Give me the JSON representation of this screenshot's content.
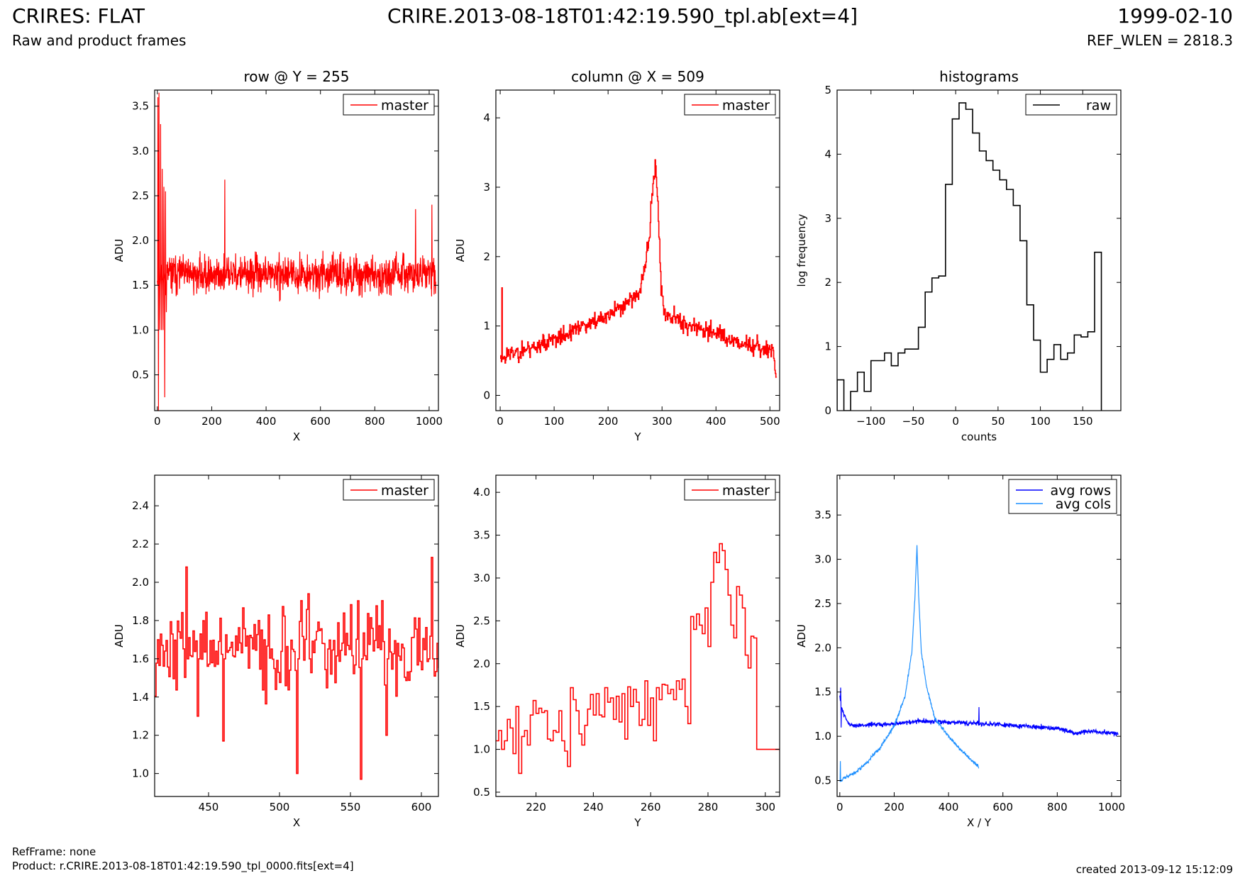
{
  "header": {
    "title": "CRIRES: FLAT",
    "subtitle": "Raw and product frames",
    "file": "CRIRE.2013-08-18T01:42:19.590_tpl.ab[ext=4]",
    "date": "1999-02-10",
    "ref_wlen": "REF_WLEN = 2818.3"
  },
  "footer": {
    "refframe": "RefFrame: none",
    "product": "Product: r.CRIRE.2013-08-18T01:42:19.590_tpl_0000.fits[ext=4]",
    "created": "created 2013-09-12 15:12:09"
  },
  "colors": {
    "master": "#ff0000",
    "raw": "#000000",
    "avg_rows": "#0000ff",
    "avg_cols": "#1e90ff"
  },
  "chart_data": [
    {
      "id": "row",
      "type": "line",
      "title": "row @ Y = 255",
      "xlabel": "X",
      "ylabel": "ADU",
      "xlim": [
        -10,
        1034
      ],
      "ylim": [
        0.1,
        3.68
      ],
      "xticks": [
        0,
        200,
        400,
        600,
        800,
        1000
      ],
      "yticks": [
        0.5,
        1.0,
        1.5,
        2.0,
        2.5,
        3.0,
        3.5
      ],
      "ytick_format": 1,
      "legend": "top-right",
      "series": [
        {
          "name": "master",
          "color": "#ff0000",
          "step": false,
          "noise": {
            "x0": 0,
            "x1": 1024,
            "n": 1024,
            "base": 1.62,
            "amp": 0.2,
            "seed": 11
          },
          "points": [
            [
              2,
              3.6
            ],
            [
              4,
              0.1
            ],
            [
              6,
              3.65
            ],
            [
              9,
              1.0
            ],
            [
              12,
              3.3
            ],
            [
              15,
              1.0
            ],
            [
              18,
              2.8
            ],
            [
              21,
              1.0
            ],
            [
              24,
              2.6
            ],
            [
              27,
              0.25
            ],
            [
              30,
              2.55
            ],
            [
              33,
              1.2
            ],
            [
              248,
              2.68
            ],
            [
              250,
              1.6
            ],
            [
              950,
              2.35
            ],
            [
              952,
              1.6
            ],
            [
              1010,
              2.4
            ],
            [
              1012,
              1.6
            ]
          ]
        }
      ]
    },
    {
      "id": "column",
      "type": "line",
      "title": "column @ X = 509",
      "xlabel": "Y",
      "ylabel": "ADU",
      "xlim": [
        -8,
        518
      ],
      "ylim": [
        -0.22,
        4.4
      ],
      "xticks": [
        0,
        100,
        200,
        300,
        400,
        500
      ],
      "yticks": [
        0,
        1,
        2,
        3,
        4
      ],
      "ytick_format": 0,
      "legend": "top-right",
      "series": [
        {
          "name": "master",
          "color": "#ff0000",
          "step": true,
          "noise": {
            "x0": 0,
            "x1": 512,
            "n": 512,
            "amp": 0.13,
            "seed": 23,
            "profile": [
              [
                0,
                0.55
              ],
              [
                100,
                0.8
              ],
              [
                200,
                1.15
              ],
              [
                260,
                1.5
              ],
              [
                275,
                2.2
              ],
              [
                283,
                3.0
              ],
              [
                287,
                3.4
              ],
              [
                292,
                2.8
              ],
              [
                298,
                1.5
              ],
              [
                303,
                1.2
              ],
              [
                350,
                1.0
              ],
              [
                400,
                0.9
              ],
              [
                450,
                0.75
              ],
              [
                505,
                0.65
              ],
              [
                512,
                0.25
              ]
            ]
          },
          "points": [
            [
              3,
              1.55
            ],
            [
              5,
              0.55
            ]
          ]
        }
      ]
    },
    {
      "id": "histograms",
      "type": "bar",
      "title": "histograms",
      "xlabel": "counts",
      "ylabel": "log frequency",
      "xlim": [
        -140,
        195
      ],
      "ylim": [
        0,
        5
      ],
      "xticks": [
        -100,
        -50,
        0,
        50,
        100,
        150
      ],
      "yticks": [
        0,
        1,
        2,
        3,
        4,
        5
      ],
      "ytick_format": 0,
      "legend": "top-right",
      "series": [
        {
          "name": "raw",
          "color": "#000000",
          "bins": {
            "start": -140,
            "width": 8
          },
          "values": [
            0.48,
            0.0,
            0.3,
            0.6,
            0.3,
            0.78,
            0.78,
            0.9,
            0.7,
            0.9,
            0.96,
            0.96,
            1.3,
            1.85,
            2.07,
            2.1,
            3.53,
            4.55,
            4.8,
            4.7,
            4.33,
            4.05,
            3.9,
            3.75,
            3.6,
            3.45,
            3.2,
            2.65,
            1.65,
            1.1,
            0.6,
            0.8,
            1.03,
            0.8,
            0.9,
            1.18,
            1.15,
            1.23,
            2.47
          ]
        }
      ]
    },
    {
      "id": "row-zoom",
      "type": "line",
      "title": "",
      "xlabel": "X",
      "ylabel": "ADU",
      "xlim": [
        412,
        612
      ],
      "ylim": [
        0.88,
        2.56
      ],
      "xticks": [
        450,
        500,
        550,
        600
      ],
      "yticks": [
        1.0,
        1.2,
        1.4,
        1.6,
        1.8,
        2.0,
        2.2,
        2.4
      ],
      "ytick_format": 1,
      "legend": "top-right",
      "series": [
        {
          "name": "master",
          "color": "#ff0000",
          "step": true,
          "noise": {
            "x0": 412,
            "x1": 612,
            "n": 200,
            "base": 1.65,
            "amp": 0.22,
            "seed": 37
          },
          "points": [
            [
              434,
              2.08
            ],
            [
              435,
              1.6
            ],
            [
              442,
              1.3
            ],
            [
              443,
              1.6
            ],
            [
              460,
              1.17
            ],
            [
              461,
              1.6
            ],
            [
              512,
              1.0
            ],
            [
              513,
              1.6
            ],
            [
              520,
              1.94
            ],
            [
              521,
              1.6
            ],
            [
              557,
              0.97
            ],
            [
              558,
              1.6
            ],
            [
              575,
              1.2
            ],
            [
              576,
              1.6
            ],
            [
              607,
              2.13
            ],
            [
              608,
              1.6
            ]
          ]
        }
      ]
    },
    {
      "id": "column-zoom",
      "type": "line",
      "title": "",
      "xlabel": "Y",
      "ylabel": "ADU",
      "xlim": [
        206,
        305
      ],
      "ylim": [
        0.45,
        4.2
      ],
      "xticks": [
        220,
        240,
        260,
        280,
        300
      ],
      "yticks": [
        0.5,
        1.0,
        1.5,
        2.0,
        2.5,
        3.0,
        3.5,
        4.0
      ],
      "ytick_format": 1,
      "legend": "top-right",
      "series": [
        {
          "name": "master",
          "color": "#ff0000",
          "step": true,
          "values_from": 206,
          "values": [
            1.1,
            1.22,
            1.0,
            1.1,
            1.35,
            1.25,
            0.95,
            1.5,
            0.72,
            1.15,
            1.22,
            1.05,
            1.4,
            1.57,
            1.42,
            1.48,
            1.43,
            1.45,
            1.12,
            1.1,
            1.22,
            1.2,
            1.45,
            1.1,
            0.98,
            0.8,
            1.72,
            1.58,
            1.45,
            1.18,
            1.05,
            1.28,
            1.47,
            1.64,
            1.4,
            1.65,
            1.4,
            1.38,
            1.72,
            1.55,
            1.6,
            1.35,
            1.62,
            1.32,
            1.65,
            1.12,
            1.73,
            1.5,
            1.7,
            1.55,
            1.28,
            1.35,
            1.8,
            1.28,
            1.6,
            1.1,
            1.72,
            1.58,
            1.76,
            1.75,
            1.65,
            1.7,
            1.58,
            1.8,
            1.7,
            1.82,
            1.5,
            1.3,
            2.55,
            2.4,
            2.58,
            2.45,
            2.35,
            2.65,
            2.2,
            2.95,
            3.3,
            3.18,
            3.4,
            3.32,
            3.1,
            2.8,
            2.45,
            2.3,
            2.9,
            2.8,
            2.65,
            2.1,
            1.95,
            2.32,
            2.3,
            1.0,
            1.0,
            1.0,
            1.0,
            1.0,
            1.0,
            1.0,
            1.0,
            1.0
          ]
        }
      ]
    },
    {
      "id": "averages",
      "type": "line",
      "title": "",
      "xlabel": "X / Y",
      "ylabel": "ADU",
      "xlim": [
        -10,
        1034
      ],
      "ylim": [
        0.32,
        3.95
      ],
      "xticks": [
        0,
        200,
        400,
        600,
        800,
        1000
      ],
      "yticks": [
        0.5,
        1.0,
        1.5,
        2.0,
        2.5,
        3.0,
        3.5
      ],
      "ytick_format": 1,
      "legend": "top-right",
      "series": [
        {
          "name": "avg rows",
          "color": "#0000ff",
          "step": false,
          "noise": {
            "x0": 0,
            "x1": 1024,
            "n": 1024,
            "amp": 0.025,
            "seed": 51,
            "profile": [
              [
                0,
                1.45
              ],
              [
                5,
                1.35
              ],
              [
                15,
                1.25
              ],
              [
                30,
                1.15
              ],
              [
                50,
                1.12
              ],
              [
                200,
                1.14
              ],
              [
                280,
                1.17
              ],
              [
                400,
                1.16
              ],
              [
                600,
                1.13
              ],
              [
                800,
                1.09
              ],
              [
                850,
                1.05
              ],
              [
                870,
                1.02
              ],
              [
                900,
                1.06
              ],
              [
                1024,
                1.03
              ]
            ]
          },
          "points": [
            [
              3,
              1.55
            ],
            [
              5,
              1.1
            ],
            [
              512,
              1.33
            ],
            [
              514,
              1.13
            ]
          ]
        },
        {
          "name": "avg cols",
          "color": "#1e90ff",
          "step": false,
          "noise": {
            "x0": 0,
            "x1": 512,
            "n": 512,
            "amp": 0.02,
            "seed": 67,
            "profile": [
              [
                0,
                0.5
              ],
              [
                50,
                0.58
              ],
              [
                100,
                0.7
              ],
              [
                150,
                0.88
              ],
              [
                200,
                1.12
              ],
              [
                240,
                1.45
              ],
              [
                265,
                1.95
              ],
              [
                276,
                2.55
              ],
              [
                284,
                3.15
              ],
              [
                290,
                2.6
              ],
              [
                300,
                1.95
              ],
              [
                320,
                1.55
              ],
              [
                350,
                1.2
              ],
              [
                400,
                1.0
              ],
              [
                450,
                0.83
              ],
              [
                512,
                0.65
              ]
            ]
          },
          "points": [
            [
              2,
              0.72
            ],
            [
              4,
              0.5
            ]
          ]
        }
      ]
    }
  ]
}
